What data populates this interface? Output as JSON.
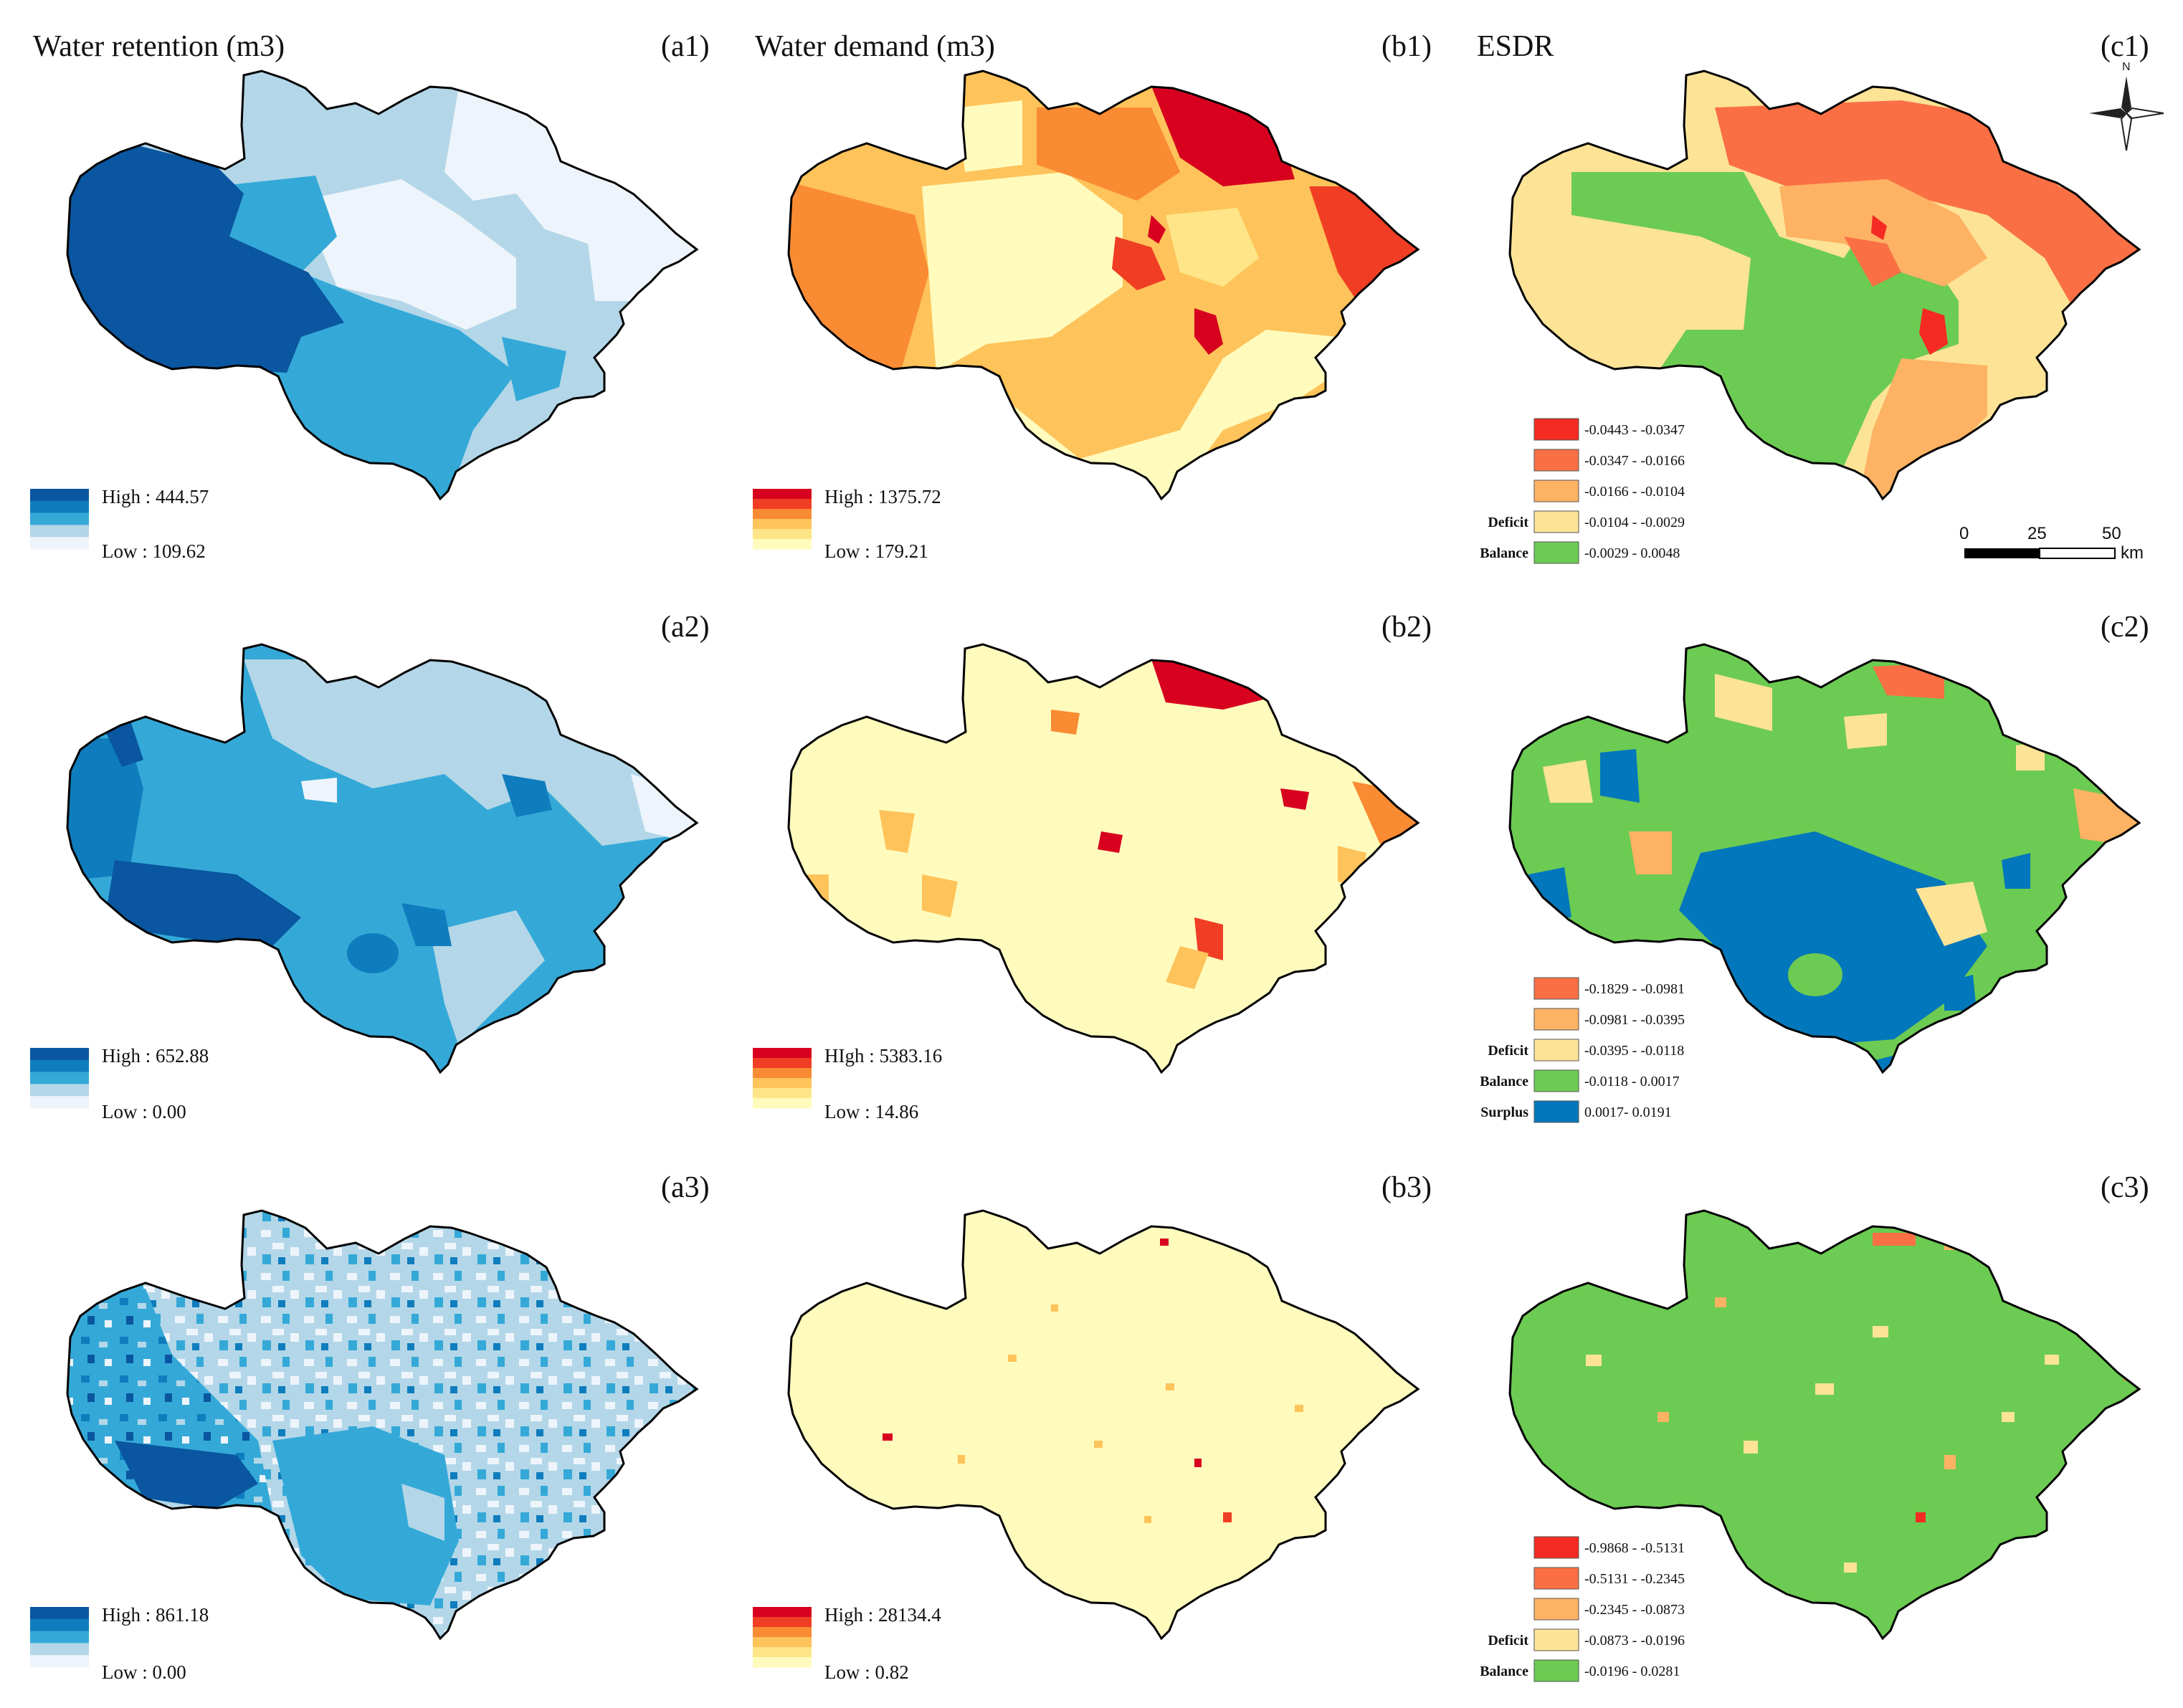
{
  "columns": [
    {
      "title": "Water retention (m3)"
    },
    {
      "title": "Water demand (m3)"
    },
    {
      "title": "ESDR"
    }
  ],
  "colors": {
    "blue": [
      "#eef4fb",
      "#b3d7e8",
      "#34a9d8",
      "#0f7dbd",
      "#0a56a0"
    ],
    "red": [
      "#fffbbd",
      "#fee587",
      "#fec35a",
      "#f98b33",
      "#f03e24",
      "#d7001f"
    ],
    "esdr": {
      "deep_red": "#f52a22",
      "red_orange": "#fa7044",
      "orange": "#fdb264",
      "yellow": "#fde396",
      "green": "#6ccb52",
      "blue": "#0377bb"
    }
  },
  "panels": [
    {
      "id": "a1",
      "label": "(a1)",
      "high_label": "High : 444.57",
      "low_label": "Low : 109.62"
    },
    {
      "id": "b1",
      "label": "(b1)",
      "high_label": "High : 1375.72",
      "low_label": "Low : 179.21"
    },
    {
      "id": "c1",
      "label": "(c1)",
      "legend": [
        {
          "cls": "",
          "range": "-0.0443 - -0.0347",
          "color": "#f52a22"
        },
        {
          "cls": "",
          "range": "-0.0347 - -0.0166",
          "color": "#fa7044"
        },
        {
          "cls": "",
          "range": "-0.0166 - -0.0104",
          "color": "#fdb264"
        },
        {
          "cls": "Deficit",
          "range": "-0.0104 - -0.0029",
          "color": "#fde396"
        },
        {
          "cls": "Balance",
          "range": "-0.0029 - 0.0048",
          "color": "#6ccb52"
        }
      ]
    },
    {
      "id": "a2",
      "label": "(a2)",
      "high_label": "High : 652.88",
      "low_label": "Low : 0.00"
    },
    {
      "id": "b2",
      "label": "(b2)",
      "high_label": "HIgh : 5383.16",
      "low_label": "Low : 14.86"
    },
    {
      "id": "c2",
      "label": "(c2)",
      "legend": [
        {
          "cls": "",
          "range": "-0.1829 - -0.0981",
          "color": "#fa7044"
        },
        {
          "cls": "",
          "range": "-0.0981 - -0.0395",
          "color": "#fdb264"
        },
        {
          "cls": "Deficit",
          "range": "-0.0395 - -0.0118",
          "color": "#fde396"
        },
        {
          "cls": "Balance",
          "range": "-0.0118 - 0.0017",
          "color": "#6ccb52"
        },
        {
          "cls": "Surplus",
          "range": "0.0017- 0.0191",
          "color": "#0377bb"
        }
      ]
    },
    {
      "id": "a3",
      "label": "(a3)",
      "high_label": "High : 861.18",
      "low_label": "Low : 0.00"
    },
    {
      "id": "b3",
      "label": "(b3)",
      "high_label": "High : 28134.4",
      "low_label": "Low : 0.82"
    },
    {
      "id": "c3",
      "label": "(c3)",
      "legend": [
        {
          "cls": "",
          "range": "-0.9868 - -0.5131",
          "color": "#f52a22"
        },
        {
          "cls": "",
          "range": "-0.5131 - -0.2345",
          "color": "#fa7044"
        },
        {
          "cls": "",
          "range": "-0.2345 - -0.0873",
          "color": "#fdb264"
        },
        {
          "cls": "Deficit",
          "range": "-0.0873 - -0.0196",
          "color": "#fde396"
        },
        {
          "cls": "Balance",
          "range": "-0.0196 - 0.0281",
          "color": "#6ccb52"
        }
      ]
    }
  ],
  "north_arrow": {
    "letter": "N"
  },
  "scale_bar": {
    "ticks": [
      "0",
      "25",
      "50"
    ],
    "unit": "km"
  }
}
